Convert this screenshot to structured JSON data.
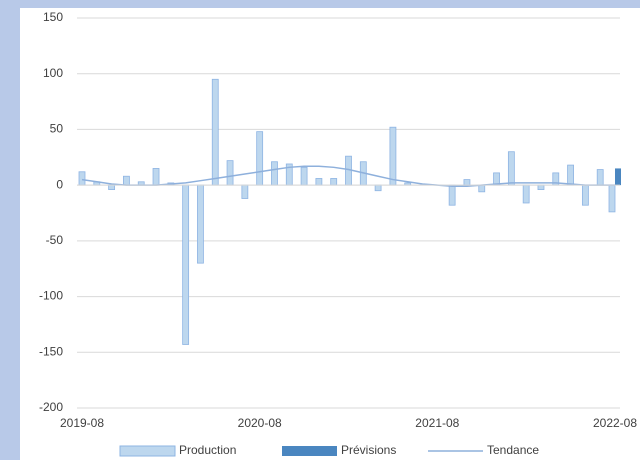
{
  "chart_data": {
    "type": "bar",
    "categories": [
      "2019-08",
      null,
      null,
      null,
      null,
      null,
      null,
      null,
      null,
      null,
      null,
      null,
      "2020-08",
      null,
      null,
      null,
      null,
      null,
      null,
      null,
      null,
      null,
      null,
      null,
      "2021-08",
      null,
      null,
      null,
      null,
      null,
      null,
      null,
      null,
      null,
      null,
      null,
      "2022-08"
    ],
    "series": [
      {
        "name": "Production",
        "type": "bar",
        "color": "#bdd7ee",
        "values": [
          12,
          3,
          -4,
          8,
          3,
          15,
          2,
          -143,
          -70,
          95,
          22,
          -12,
          48,
          21,
          19,
          16,
          6,
          6,
          26,
          21,
          -5,
          52,
          2,
          null,
          null,
          -18,
          5,
          -6,
          11,
          30,
          -16,
          -4,
          11,
          18,
          -18,
          14,
          -24
        ]
      },
      {
        "name": "Prévisions",
        "type": "bar",
        "color": "#4a86c0",
        "values": [
          null,
          null,
          null,
          null,
          null,
          null,
          null,
          null,
          null,
          null,
          null,
          null,
          null,
          null,
          null,
          null,
          null,
          null,
          null,
          null,
          null,
          null,
          null,
          null,
          null,
          null,
          null,
          null,
          null,
          null,
          null,
          null,
          null,
          null,
          null,
          null,
          15
        ]
      },
      {
        "name": "Tendance",
        "type": "line",
        "color": "#8eb0dc",
        "values": [
          5,
          3,
          1,
          0,
          0,
          0,
          1,
          2,
          4,
          6,
          8,
          10,
          12,
          14,
          16,
          17,
          17,
          16,
          14,
          11,
          8,
          5,
          3,
          1,
          0,
          -1,
          -1,
          0,
          1,
          2,
          2,
          2,
          2,
          1,
          0,
          0,
          0
        ]
      }
    ],
    "ylim": [
      -200,
      150
    ],
    "yticks": [
      -200,
      -150,
      -100,
      -50,
      0,
      50,
      100,
      150
    ],
    "grid": true
  }
}
